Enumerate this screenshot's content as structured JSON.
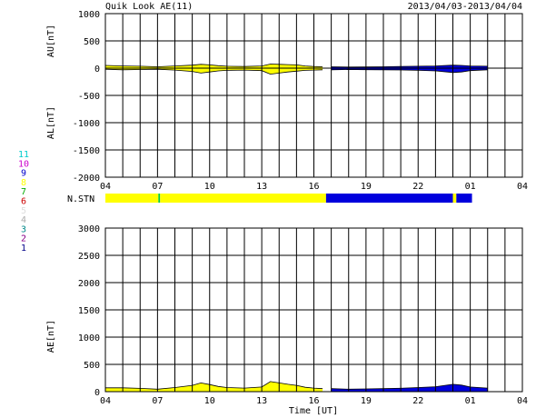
{
  "header": {
    "title": "Quik Look AE(11)",
    "date_range": "2013/04/03-2013/04/04"
  },
  "colors": {
    "stn_high": "#ffff00",
    "stn_low": "#0000dd",
    "stn_mid": "#00cc44",
    "grid": "#000000"
  },
  "station_legend": {
    "label": "N.STN",
    "items": [
      {
        "value": "11",
        "color": "#00cccc"
      },
      {
        "value": "10",
        "color": "#cc00cc"
      },
      {
        "value": "9",
        "color": "#0000cc"
      },
      {
        "value": "8",
        "color": "#ffff00"
      },
      {
        "value": "7",
        "color": "#00aa00"
      },
      {
        "value": "6",
        "color": "#cc0000"
      },
      {
        "value": "5",
        "color": "#dddddd"
      },
      {
        "value": "4",
        "color": "#aaaaaa"
      },
      {
        "value": "3",
        "color": "#008888"
      },
      {
        "value": "2",
        "color": "#880088"
      },
      {
        "value": "1",
        "color": "#000088"
      }
    ]
  },
  "chart_data": [
    {
      "type": "area",
      "title": "",
      "ylabel_top": "AU[nT]",
      "ylabel_bottom": "AL[nT]",
      "xlabel": "",
      "xlim": [
        4,
        28
      ],
      "ylim": [
        -2000,
        1000
      ],
      "yticks": [
        1000,
        500,
        0,
        -500,
        -1000,
        -1500,
        -2000
      ],
      "xtick_labels": [
        "04",
        "07",
        "10",
        "13",
        "16",
        "19",
        "22",
        "01",
        "04"
      ],
      "xtick_hours": [
        4,
        7,
        10,
        13,
        16,
        19,
        22,
        25,
        28
      ],
      "grid": true,
      "x_hours": [
        4,
        5,
        6,
        7,
        8,
        9,
        9.5,
        10,
        10.5,
        11,
        12,
        13,
        13.5,
        14,
        14.5,
        15,
        15.5,
        16,
        16.5,
        17,
        18,
        19,
        20,
        21,
        22,
        23,
        24,
        24.5,
        25,
        26
      ],
      "au": [
        50,
        40,
        35,
        25,
        40,
        55,
        70,
        60,
        45,
        35,
        30,
        40,
        75,
        70,
        65,
        60,
        40,
        30,
        25,
        25,
        20,
        22,
        25,
        30,
        35,
        40,
        55,
        50,
        40,
        35
      ],
      "al": [
        -20,
        -30,
        -25,
        -20,
        -35,
        -60,
        -90,
        -70,
        -50,
        -40,
        -35,
        -45,
        -110,
        -90,
        -70,
        -55,
        -40,
        -35,
        -30,
        -30,
        -25,
        -28,
        -30,
        -32,
        -40,
        -50,
        -80,
        -70,
        -45,
        -30
      ],
      "station_segments": [
        {
          "start": 4,
          "end": 7.05,
          "stations": 8
        },
        {
          "start": 7.05,
          "end": 7.15,
          "stations": 7
        },
        {
          "start": 7.15,
          "end": 16.7,
          "stations": 8
        },
        {
          "start": 16.7,
          "end": 24.0,
          "stations": 9
        },
        {
          "start": 24.0,
          "end": 24.2,
          "stations": 8
        },
        {
          "start": 24.2,
          "end": 25.1,
          "stations": 9
        }
      ]
    },
    {
      "type": "area",
      "title": "",
      "ylabel": "AE[nT]",
      "xlabel": "Time [UT]",
      "xlim": [
        4,
        28
      ],
      "ylim": [
        0,
        3000
      ],
      "yticks": [
        3000,
        2500,
        2000,
        1500,
        1000,
        500,
        0
      ],
      "xtick_labels": [
        "04",
        "07",
        "10",
        "13",
        "16",
        "19",
        "22",
        "01",
        "04"
      ],
      "xtick_hours": [
        4,
        7,
        10,
        13,
        16,
        19,
        22,
        25,
        28
      ],
      "grid": true,
      "x_hours": [
        4,
        5,
        6,
        7,
        8,
        9,
        9.5,
        10,
        10.5,
        11,
        12,
        13,
        13.5,
        14,
        14.5,
        15,
        15.5,
        16,
        16.5,
        17,
        18,
        19,
        20,
        21,
        22,
        23,
        24,
        24.5,
        25,
        26
      ],
      "ae": [
        70,
        70,
        60,
        45,
        75,
        115,
        160,
        130,
        95,
        75,
        65,
        85,
        185,
        160,
        135,
        115,
        80,
        65,
        55,
        55,
        45,
        50,
        55,
        62,
        75,
        90,
        135,
        120,
        85,
        65
      ]
    }
  ]
}
